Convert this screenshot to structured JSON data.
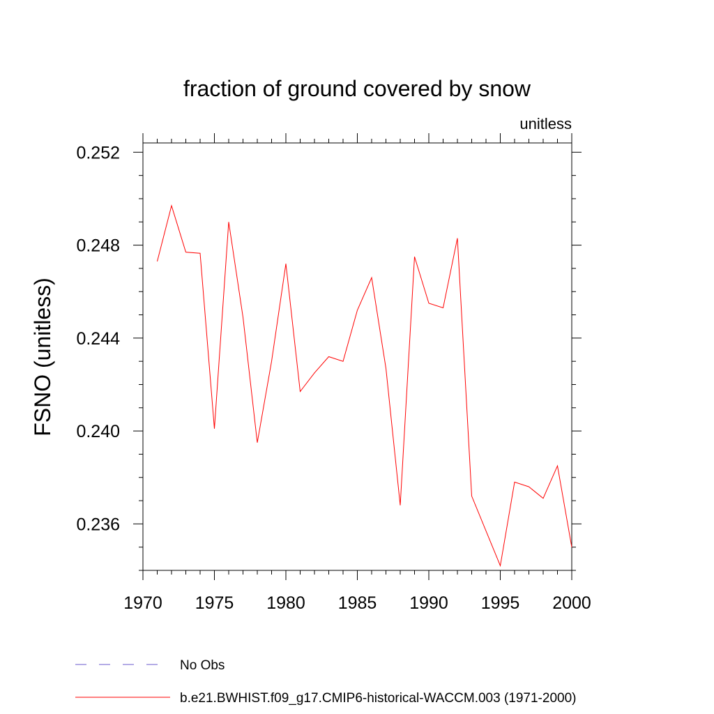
{
  "chart_data": {
    "type": "line",
    "title": "fraction of ground covered by snow",
    "units_label": "unitless",
    "xlabel": "",
    "ylabel": "FSNO  (unitless)",
    "xlim": [
      1970,
      2000
    ],
    "ylim": [
      0.234,
      0.2524
    ],
    "x_ticks": [
      1970,
      1975,
      1980,
      1985,
      1990,
      1995,
      2000
    ],
    "x_tick_labels": [
      "1970",
      "1975",
      "1980",
      "1985",
      "1990",
      "1995",
      "2000"
    ],
    "y_ticks": [
      0.236,
      0.24,
      0.244,
      0.248,
      0.252
    ],
    "y_tick_labels": [
      "0.236",
      "0.240",
      "0.244",
      "0.248",
      "0.252"
    ],
    "y_minor_step": 0.001,
    "grid": false,
    "legend_position": "bottom-left",
    "series": [
      {
        "name": "b.e21.BWHIST.f09_g17.CMIP6-historical-WACCM.003 (1971-2000)",
        "color": "#ff0000",
        "x": [
          1971,
          1972,
          1973,
          1974,
          1975,
          1976,
          1977,
          1978,
          1979,
          1980,
          1981,
          1982,
          1983,
          1984,
          1985,
          1986,
          1987,
          1988,
          1989,
          1990,
          1991,
          1992,
          1993,
          1994,
          1995,
          1996,
          1997,
          1998,
          1999,
          2000
        ],
        "y": [
          0.2473,
          0.2497,
          0.2477,
          0.24765,
          0.2401,
          0.249,
          0.2449,
          0.2395,
          0.243,
          0.2472,
          0.2417,
          0.2425,
          0.2432,
          0.243,
          0.2452,
          0.2466,
          0.2427,
          0.2368,
          0.2475,
          0.2455,
          0.2453,
          0.2483,
          0.2372,
          0.2357,
          0.2342,
          0.2378,
          0.2376,
          0.2371,
          0.2385,
          0.235
        ]
      }
    ],
    "legend": [
      {
        "label": "No Obs",
        "color": "#6a5acd",
        "dash": true
      },
      {
        "label": "b.e21.BWHIST.f09_g17.CMIP6-historical-WACCM.003 (1971-2000)",
        "color": "#ff0000",
        "dash": false
      }
    ]
  }
}
